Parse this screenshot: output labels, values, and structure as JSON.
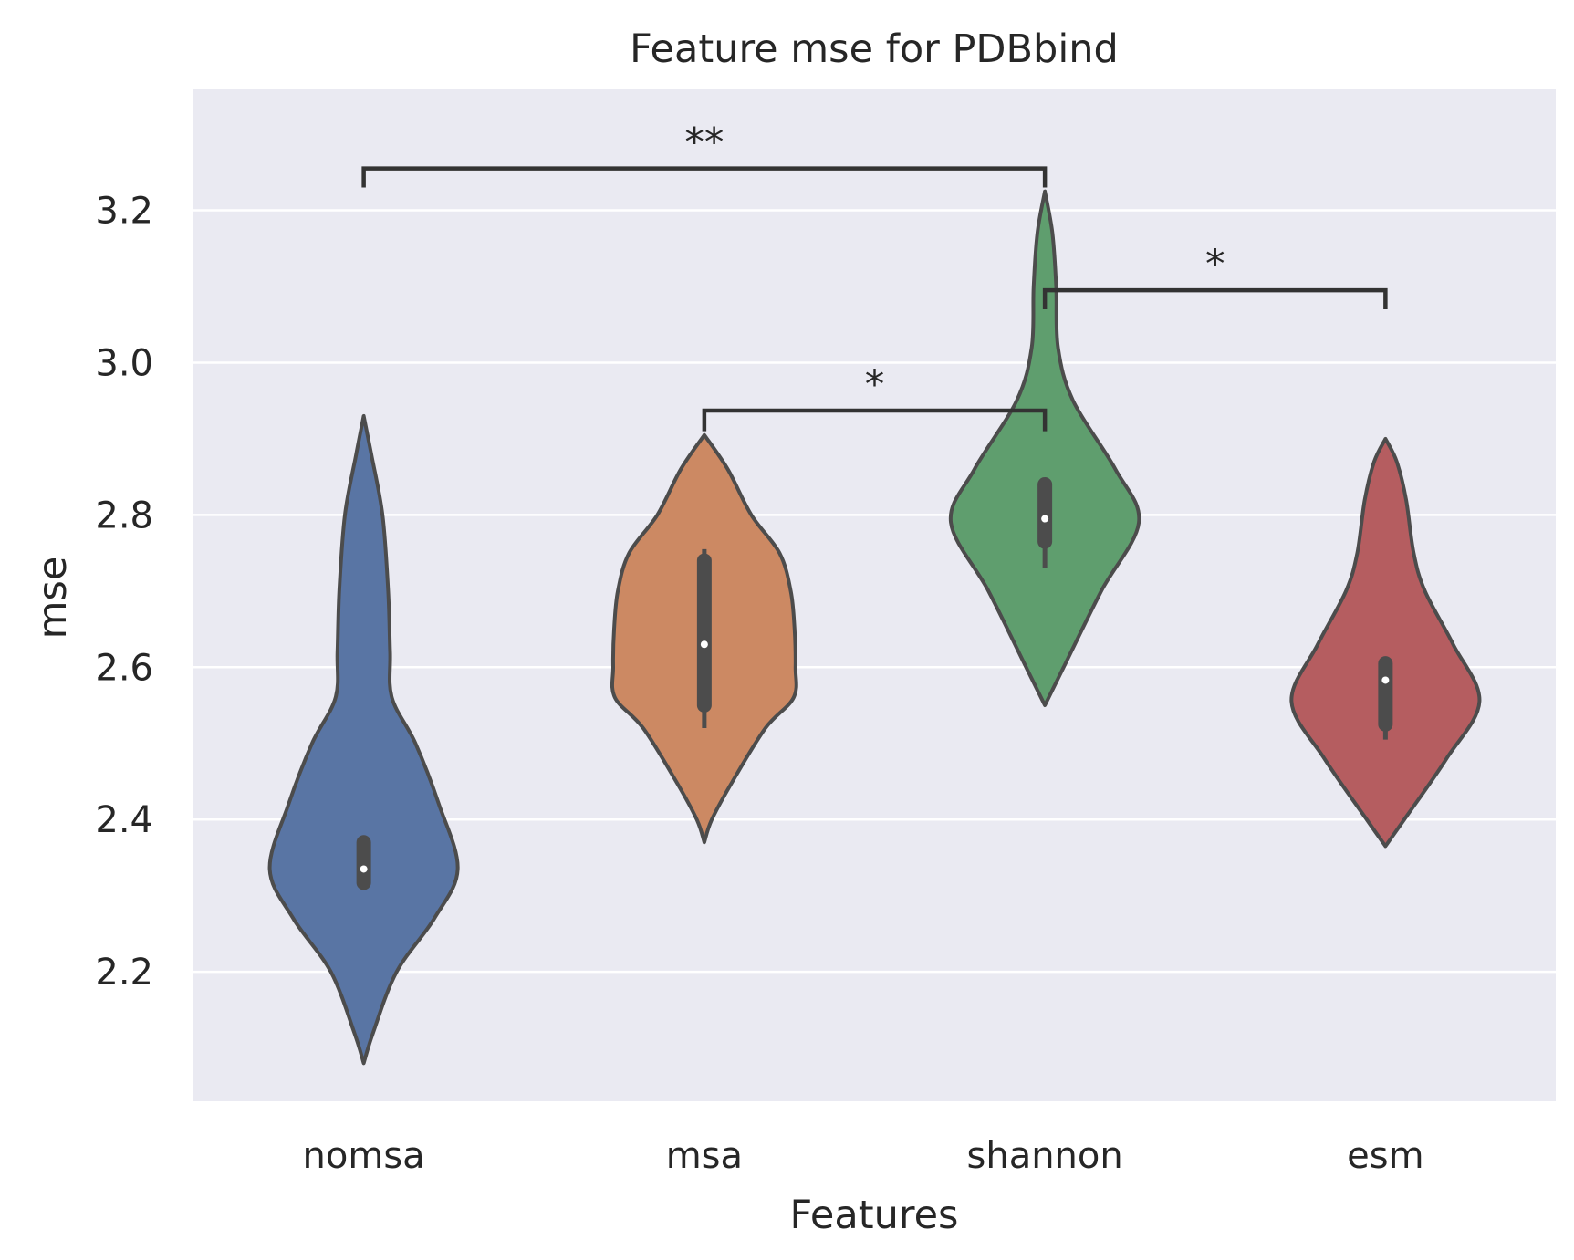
{
  "chart_data": {
    "type": "violin",
    "title": "Feature mse for PDBbind",
    "xlabel": "Features",
    "ylabel": "mse",
    "ylim": [
      2.03,
      3.36
    ],
    "yticks": [
      "2.2",
      "2.4",
      "2.6",
      "2.8",
      "3.0",
      "3.2"
    ],
    "grid": true,
    "categories": [
      "nomsa",
      "msa",
      "shannon",
      "esm"
    ],
    "series": [
      {
        "category": "nomsa",
        "color": "#5975a4",
        "min": 2.08,
        "max": 2.93,
        "median": 2.335,
        "q1": 2.317,
        "q3": 2.37,
        "whisker_low": 2.317,
        "whisker_high": 2.37,
        "density_profile": [
          [
            2.08,
            0
          ],
          [
            2.12,
            0.1
          ],
          [
            2.2,
            0.35
          ],
          [
            2.27,
            0.75
          ],
          [
            2.335,
            1.0
          ],
          [
            2.42,
            0.8
          ],
          [
            2.5,
            0.55
          ],
          [
            2.56,
            0.3
          ],
          [
            2.62,
            0.28
          ],
          [
            2.7,
            0.26
          ],
          [
            2.8,
            0.2
          ],
          [
            2.88,
            0.08
          ],
          [
            2.93,
            0
          ]
        ]
      },
      {
        "category": "msa",
        "color": "#cc8963",
        "min": 2.37,
        "max": 2.905,
        "median": 2.63,
        "q1": 2.55,
        "q3": 2.74,
        "whisker_low": 2.52,
        "whisker_high": 2.755,
        "density_profile": [
          [
            2.37,
            0
          ],
          [
            2.4,
            0.08
          ],
          [
            2.45,
            0.3
          ],
          [
            2.52,
            0.65
          ],
          [
            2.56,
            0.95
          ],
          [
            2.6,
            0.97
          ],
          [
            2.65,
            0.96
          ],
          [
            2.7,
            0.92
          ],
          [
            2.75,
            0.8
          ],
          [
            2.8,
            0.5
          ],
          [
            2.86,
            0.25
          ],
          [
            2.905,
            0
          ]
        ]
      },
      {
        "category": "shannon",
        "color": "#5f9e6e",
        "min": 2.55,
        "max": 3.225,
        "median": 2.795,
        "q1": 2.765,
        "q3": 2.84,
        "whisker_low": 2.73,
        "whisker_high": 2.84,
        "density_profile": [
          [
            2.55,
            0
          ],
          [
            2.6,
            0.2
          ],
          [
            2.7,
            0.6
          ],
          [
            2.79,
            1.0
          ],
          [
            2.86,
            0.75
          ],
          [
            2.95,
            0.3
          ],
          [
            3.02,
            0.14
          ],
          [
            3.1,
            0.12
          ],
          [
            3.17,
            0.08
          ],
          [
            3.225,
            0
          ]
        ]
      },
      {
        "category": "esm",
        "color": "#b55d60",
        "min": 2.365,
        "max": 2.9,
        "median": 2.583,
        "q1": 2.525,
        "q3": 2.605,
        "whisker_low": 2.505,
        "whisker_high": 2.605,
        "density_profile": [
          [
            2.365,
            0
          ],
          [
            2.4,
            0.2
          ],
          [
            2.48,
            0.65
          ],
          [
            2.555,
            1.0
          ],
          [
            2.63,
            0.72
          ],
          [
            2.7,
            0.42
          ],
          [
            2.75,
            0.3
          ],
          [
            2.82,
            0.22
          ],
          [
            2.87,
            0.12
          ],
          [
            2.9,
            0
          ]
        ]
      }
    ],
    "annotations": [
      {
        "from": "nomsa",
        "to": "shannon",
        "label": "**",
        "y": 3.255,
        "left_tip": 3.23,
        "right_tip": 3.23
      },
      {
        "from": "shannon",
        "to": "esm",
        "label": "*",
        "y": 3.095,
        "left_tip": 3.07,
        "right_tip": 3.07
      },
      {
        "from": "msa",
        "to": "shannon",
        "label": "*",
        "y": 2.937,
        "left_tip": 2.91,
        "right_tip": 2.91
      }
    ]
  }
}
